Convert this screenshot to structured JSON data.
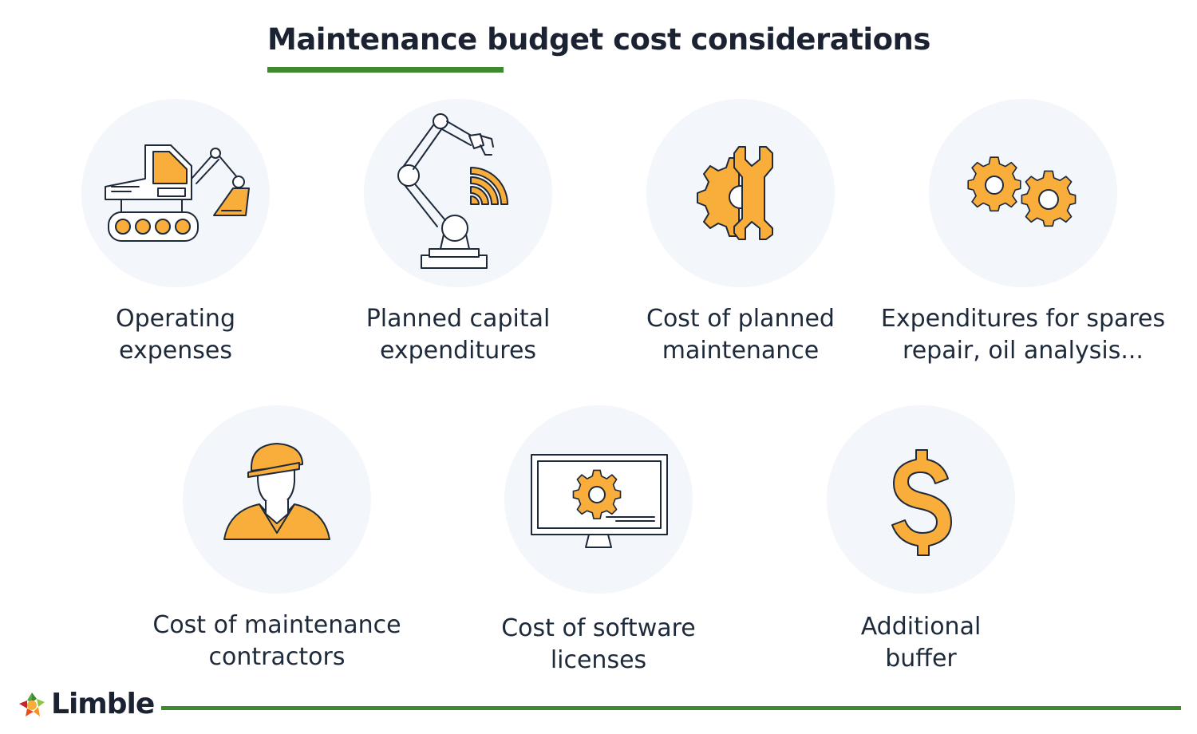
{
  "title": "Maintenance budget cost considerations",
  "colors": {
    "accent_green": "#3f8a2e",
    "icon_orange": "#f9ad3b",
    "circle_bg": "#f3f6fb",
    "text_dark": "#1b2333"
  },
  "items": [
    {
      "icon": "excavator-icon",
      "label_line1": "Operating",
      "label_line2": "expenses"
    },
    {
      "icon": "robotic-arm-icon",
      "label_line1": "Planned capital",
      "label_line2": "expenditures"
    },
    {
      "icon": "gear-wrench-icon",
      "label_line1": "Cost of planned",
      "label_line2": "maintenance"
    },
    {
      "icon": "gears-icon",
      "label_line1": "Expenditures for spares",
      "label_line2": "repair, oil analysis..."
    },
    {
      "icon": "worker-hardhat-icon",
      "label_line1": "Cost of maintenance",
      "label_line2": "contractors"
    },
    {
      "icon": "monitor-gear-icon",
      "label_line1": "Cost of software",
      "label_line2": "licenses"
    },
    {
      "icon": "dollar-icon",
      "label_line1": "Additional",
      "label_line2": "buffer"
    }
  ],
  "footer": {
    "logo_text": "Limble"
  }
}
